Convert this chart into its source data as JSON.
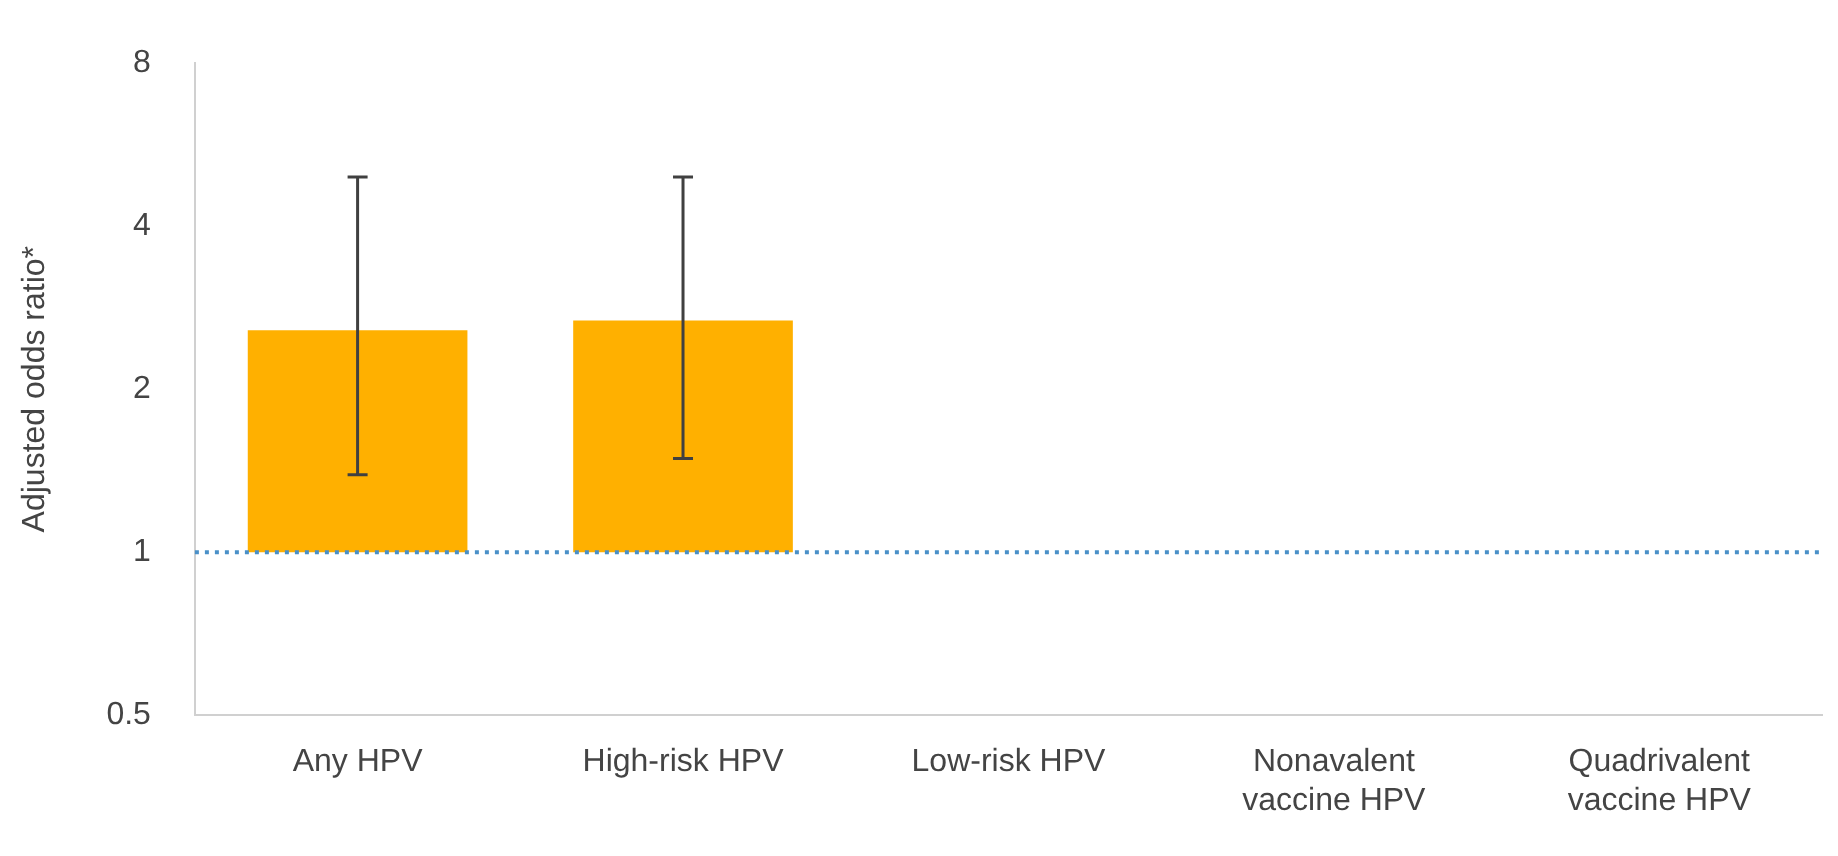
{
  "chart_data": {
    "type": "bar",
    "ylabel": "Adjusted odds ratio*",
    "categories": [
      "Any HPV",
      "High-risk HPV",
      "Low-risk HPV",
      "Nonavalent\nvaccine HPV",
      "Quadrivalent\nvaccine HPV"
    ],
    "base": [
      1,
      1,
      null,
      null,
      null
    ],
    "values": [
      1.57,
      1.68,
      null,
      null,
      null
    ],
    "errors": [
      [
        1.39,
        4.93
      ],
      [
        1.49,
        4.93
      ],
      null,
      null,
      null
    ],
    "color": "#ffb000",
    "log": "y",
    "ylim": [
      0.5,
      8
    ],
    "yticks": [
      0.5,
      1,
      2,
      4,
      8
    ],
    "grid": false,
    "legend": false,
    "ref_lines": [
      {
        "axis": "y",
        "value": 1,
        "color": "#4a90c8",
        "line_style": "dotted"
      }
    ]
  }
}
